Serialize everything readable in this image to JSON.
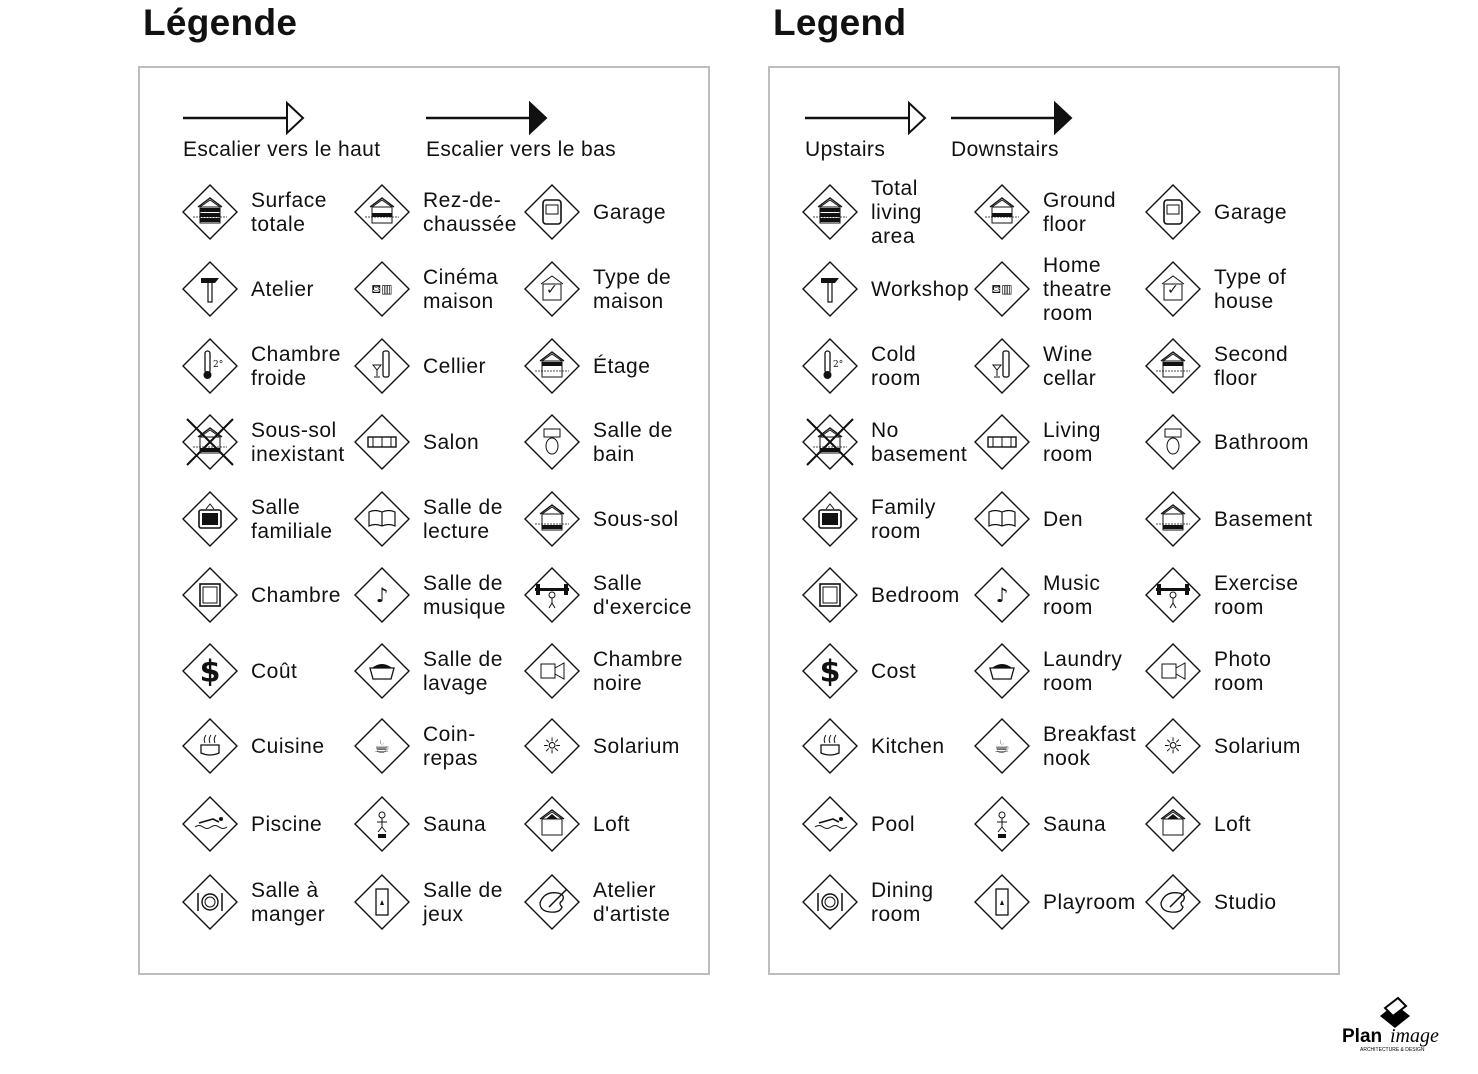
{
  "french": {
    "title": "Légende",
    "upstairs": "Escalier vers le haut",
    "downstairs": "Escalier vers le bas",
    "items": [
      {
        "label": "Surface\ntotale",
        "icon": "floors-total-icon"
      },
      {
        "label": "Rez-de-\nchaussée",
        "icon": "ground-floor-icon"
      },
      {
        "label": "Garage",
        "icon": "garage-icon"
      },
      {
        "label": "Atelier",
        "icon": "hammer-icon"
      },
      {
        "label": "Cinéma\nmaison",
        "icon": "home-theatre-icon"
      },
      {
        "label": "Type de\nmaison",
        "icon": "house-check-icon"
      },
      {
        "label": "Chambre\nfroide",
        "icon": "thermometer-icon"
      },
      {
        "label": "Cellier",
        "icon": "wine-icon"
      },
      {
        "label": "Étage",
        "icon": "second-floor-icon"
      },
      {
        "label": "Sous-sol\ninexistant",
        "icon": "no-basement-icon"
      },
      {
        "label": "Salon",
        "icon": "sofa-icon"
      },
      {
        "label": "Salle de\nbain",
        "icon": "toilet-icon"
      },
      {
        "label": "Salle\nfamiliale",
        "icon": "tv-icon"
      },
      {
        "label": "Salle de\nlecture",
        "icon": "book-icon"
      },
      {
        "label": "Sous-sol",
        "icon": "basement-icon"
      },
      {
        "label": "Chambre",
        "icon": "bedroom-icon"
      },
      {
        "label": "Salle de\nmusique",
        "icon": "music-note-icon"
      },
      {
        "label": "Salle\nd'exercice",
        "icon": "weightlifter-icon"
      },
      {
        "label": "Coût",
        "icon": "dollar-icon"
      },
      {
        "label": "Salle de\nlavage",
        "icon": "laundry-basket-icon"
      },
      {
        "label": "Chambre\nnoire",
        "icon": "camera-icon"
      },
      {
        "label": "Cuisine",
        "icon": "cooking-pot-icon"
      },
      {
        "label": "Coin-\nrepas",
        "icon": "coffee-cup-icon"
      },
      {
        "label": "Solarium",
        "icon": "sun-icon"
      },
      {
        "label": "Piscine",
        "icon": "swimmer-icon"
      },
      {
        "label": "Sauna",
        "icon": "sauna-icon"
      },
      {
        "label": "Loft",
        "icon": "loft-icon"
      },
      {
        "label": "Salle à\nmanger",
        "icon": "plate-cutlery-icon"
      },
      {
        "label": "Salle de\njeux",
        "icon": "playing-card-icon"
      },
      {
        "label": "Atelier\nd'artiste",
        "icon": "palette-icon"
      }
    ]
  },
  "english": {
    "title": "Legend",
    "upstairs": "Upstairs",
    "downstairs": "Downstairs",
    "items": [
      {
        "label": "Total\nliving\narea",
        "icon": "floors-total-icon"
      },
      {
        "label": "Ground\nfloor",
        "icon": "ground-floor-icon"
      },
      {
        "label": "Garage",
        "icon": "garage-icon"
      },
      {
        "label": "Workshop",
        "icon": "hammer-icon"
      },
      {
        "label": "Home\ntheatre\nroom",
        "icon": "home-theatre-icon"
      },
      {
        "label": "Type of\nhouse",
        "icon": "house-check-icon"
      },
      {
        "label": "Cold\nroom",
        "icon": "thermometer-icon"
      },
      {
        "label": "Wine\ncellar",
        "icon": "wine-icon"
      },
      {
        "label": "Second\nfloor",
        "icon": "second-floor-icon"
      },
      {
        "label": "No\nbasement",
        "icon": "no-basement-icon"
      },
      {
        "label": "Living\nroom",
        "icon": "sofa-icon"
      },
      {
        "label": "Bathroom",
        "icon": "toilet-icon"
      },
      {
        "label": "Family\nroom",
        "icon": "tv-icon"
      },
      {
        "label": "Den",
        "icon": "book-icon"
      },
      {
        "label": "Basement",
        "icon": "basement-icon"
      },
      {
        "label": "Bedroom",
        "icon": "bedroom-icon"
      },
      {
        "label": "Music\nroom",
        "icon": "music-note-icon"
      },
      {
        "label": "Exercise\nroom",
        "icon": "weightlifter-icon"
      },
      {
        "label": "Cost",
        "icon": "dollar-icon"
      },
      {
        "label": "Laundry\nroom",
        "icon": "laundry-basket-icon"
      },
      {
        "label": "Photo\nroom",
        "icon": "camera-icon"
      },
      {
        "label": "Kitchen",
        "icon": "cooking-pot-icon"
      },
      {
        "label": "Breakfast\nnook",
        "icon": "coffee-cup-icon"
      },
      {
        "label": "Solarium",
        "icon": "sun-icon"
      },
      {
        "label": "Pool",
        "icon": "swimmer-icon"
      },
      {
        "label": "Sauna",
        "icon": "sauna-icon"
      },
      {
        "label": "Loft",
        "icon": "loft-icon"
      },
      {
        "label": "Dining\nroom",
        "icon": "plate-cutlery-icon"
      },
      {
        "label": "Playroom",
        "icon": "playing-card-icon"
      },
      {
        "label": "Studio",
        "icon": "palette-icon"
      }
    ]
  },
  "logo": {
    "name": "Planimage",
    "tagline": "ARCHITECTURE & DESIGN"
  }
}
